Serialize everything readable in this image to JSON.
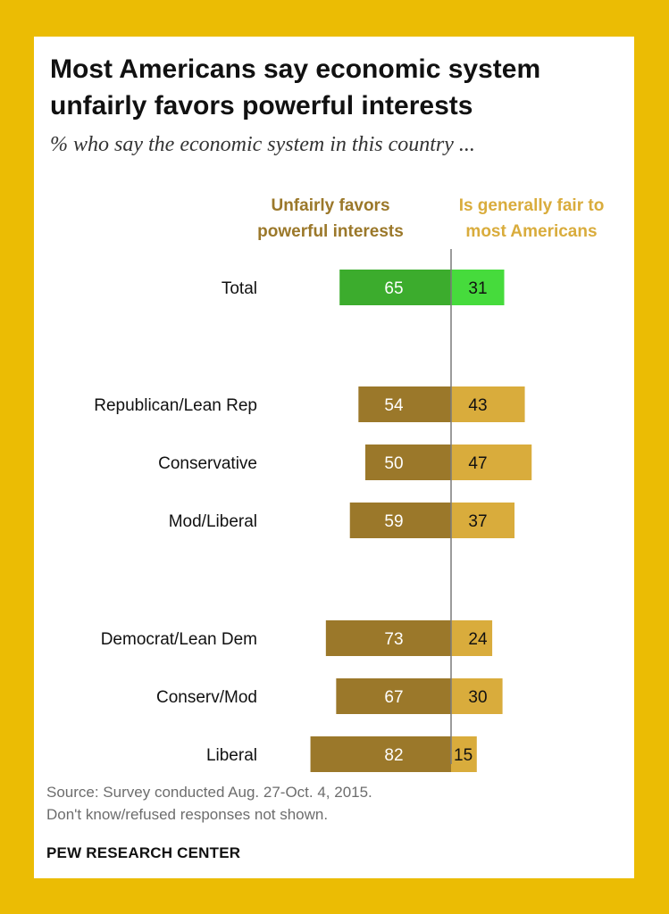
{
  "page": {
    "title_line1": "Most Americans say economic system",
    "title_line2": "unfairly favors powerful interests",
    "subtitle": "% who say the economic system in this country ...",
    "source_line1": "Source: Survey conducted Aug. 27-Oct. 4, 2015.",
    "source_line2": "Don't know/refused responses not shown.",
    "brand": "PEW RESEARCH CENTER"
  },
  "colors": {
    "background": "#ebbc04",
    "total_left": "#3cac2d",
    "total_right": "#46db3c",
    "left": "#9b782a",
    "right": "#d9ac3c",
    "left_header": "#9b782a",
    "right_header": "#d9ac3c"
  },
  "chart_data": {
    "type": "bar",
    "orientation": "diverging-horizontal",
    "legend": {
      "left_line1": "Unfairly favors",
      "left_line2": "powerful interests",
      "right_line1": "Is generally fair to",
      "right_line2": "most Americans"
    },
    "categories": [
      "Total",
      "Republican/Lean Rep",
      "Conservative",
      "Mod/Liberal",
      "Democrat/Lean Dem",
      "Conserv/Mod",
      "Liberal"
    ],
    "series": [
      {
        "name": "Unfairly favors powerful interests",
        "values": [
          65,
          54,
          50,
          59,
          73,
          67,
          82
        ]
      },
      {
        "name": "Is generally fair to most Americans",
        "values": [
          31,
          43,
          47,
          37,
          24,
          30,
          15
        ]
      }
    ],
    "groups": [
      [
        0
      ],
      [
        1,
        2,
        3
      ],
      [
        4,
        5,
        6
      ]
    ],
    "highlight": "Total"
  }
}
